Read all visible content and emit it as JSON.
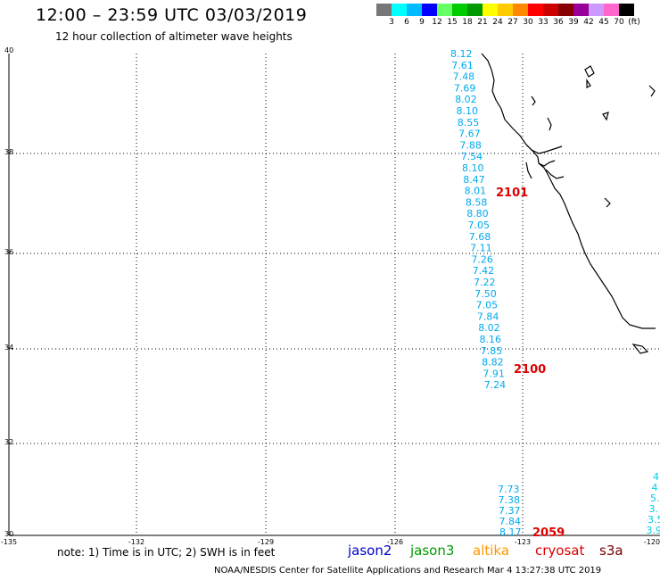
{
  "header": {
    "title": "12:00 – 23:59 UTC 03/03/2019",
    "subtitle": "12 hour collection of altimeter wave heights"
  },
  "scale": {
    "colors": [
      "#777777",
      "#00ffff",
      "#00bbff",
      "#0000ff",
      "#66ff66",
      "#00cc00",
      "#009900",
      "#ffff00",
      "#ffcc00",
      "#ff8800",
      "#ff0000",
      "#cc0000",
      "#880000",
      "#990099",
      "#cc99ff",
      "#ff66cc",
      "#000000"
    ],
    "labels": [
      "3",
      "6",
      "9",
      "12",
      "15",
      "18",
      "21",
      "24",
      "27",
      "30",
      "33",
      "36",
      "39",
      "42",
      "45",
      "70",
      "(ft)"
    ]
  },
  "axes": {
    "lat_labels": [
      "40",
      "38",
      "36",
      "34",
      "32",
      "30"
    ],
    "lon_labels": [
      "-135",
      "-132",
      "-129",
      "-126",
      "-123",
      "-120"
    ]
  },
  "track1": {
    "color": "#00aaee",
    "values": [
      "8.12",
      "7.61",
      "7.48",
      "7.69",
      "8.02",
      "8.10",
      "8.55",
      "7.67",
      "7.88",
      "7.54",
      "8.10",
      "8.47",
      "8.01",
      "8.58",
      "8.80",
      "7.05",
      "7.68",
      "7.11",
      "7.26",
      "7.42",
      "7.22",
      "7.50",
      "7.05",
      "7.84",
      "8.02",
      "8.16",
      "7.85",
      "8.82",
      "7.91",
      "7.24"
    ]
  },
  "track2": {
    "color": "#00aaee",
    "values": [
      "7.73",
      "7.38",
      "7.37",
      "7.84",
      "8.17"
    ]
  },
  "track3": {
    "color": "#00ccee",
    "values": [
      "4",
      "4",
      "5.",
      "3.",
      "3.5",
      "3.9"
    ]
  },
  "times": [
    "2101",
    "2100",
    "2059"
  ],
  "time_color": "#dd0000",
  "note": "note:  1) Time is in UTC;  2) SWH is in feet",
  "legend": [
    {
      "label": "jason2",
      "color": "#0000cc"
    },
    {
      "label": "jason3",
      "color": "#009900"
    },
    {
      "label": "altika",
      "color": "#ff9900"
    },
    {
      "label": "cryosat",
      "color": "#dd0000"
    },
    {
      "label": "s3a",
      "color": "#770000"
    }
  ],
  "footer": "NOAA/NESDIS Center for Satellite Applications and Research     Mar  4 13:27:38 UTC 2019"
}
